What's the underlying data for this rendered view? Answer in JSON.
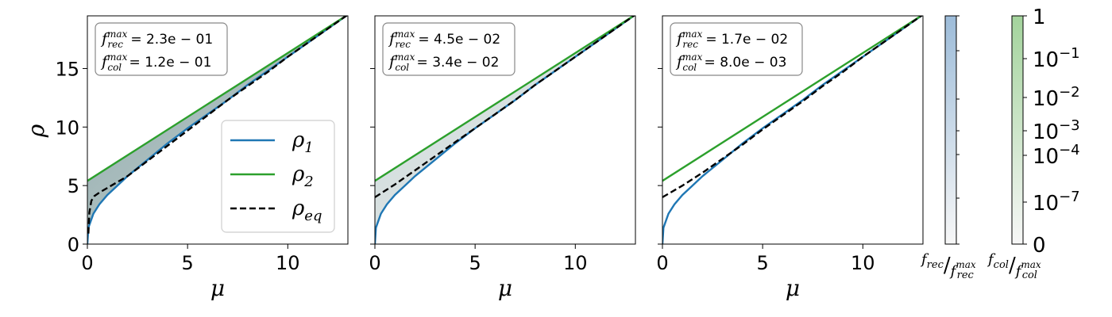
{
  "chart_data": {
    "type": "line",
    "colors": {
      "rho1": "#1f77b4",
      "rho2": "#2ca02c",
      "rho_eq": "#000000",
      "rec_fill": "#9dbcd9",
      "col_fill": "#a3d39c"
    },
    "xlabel": "μ",
    "ylabel": "ρ",
    "xlim": [
      0,
      13
    ],
    "ylim": [
      0,
      19.5
    ],
    "xticks": [
      "0",
      "5",
      "10"
    ],
    "yticks": [
      "0",
      "5",
      "10",
      "15"
    ],
    "legend": {
      "position": "lower-right",
      "entries": [
        {
          "key": "rho1",
          "base": "ρ",
          "sub": "1"
        },
        {
          "key": "rho2",
          "base": "ρ",
          "sub": "2"
        },
        {
          "key": "rho_eq",
          "base": "ρ",
          "sub": "eq"
        }
      ]
    },
    "panels": [
      {
        "annotation": [
          {
            "sup": "max",
            "sub": "rec",
            "value": "= 2.3e − 01"
          },
          {
            "sup": "max",
            "sub": "col",
            "value": "= 1.2e − 01"
          }
        ],
        "fill_intensity": 1.0,
        "series": {
          "rho1": {
            "x": [
              0,
              0.05,
              0.3,
              0.6,
              1,
              1.5,
              2,
              3,
              4,
              5,
              6,
              7,
              8,
              9,
              10,
              11,
              12,
              13
            ],
            "y": [
              0,
              1.4,
              2.6,
              3.4,
              4.2,
              5.0,
              5.8,
              7.2,
              8.6,
              9.9,
              11.1,
              12.3,
              13.6,
              14.8,
              16.0,
              17.2,
              18.4,
              19.6
            ]
          },
          "rho2": {
            "x": [
              0,
              13
            ],
            "y": [
              5.4,
              19.6
            ]
          },
          "rho_eq": {
            "x": [
              0.05,
              0.1,
              0.2,
              0.35,
              0.6,
              1,
              1.5,
              2,
              3,
              4,
              5,
              6,
              7,
              8,
              9,
              10,
              11,
              12,
              13
            ],
            "y": [
              0.9,
              2.7,
              3.7,
              4.1,
              4.4,
              4.8,
              5.3,
              5.8,
              7.1,
              8.4,
              9.7,
              11.0,
              12.3,
              13.5,
              14.7,
              16.0,
              17.2,
              18.4,
              19.6
            ]
          }
        }
      },
      {
        "annotation": [
          {
            "sup": "max",
            "sub": "rec",
            "value": "= 4.5e − 02"
          },
          {
            "sup": "max",
            "sub": "col",
            "value": "= 3.4e − 02"
          }
        ],
        "fill_intensity": 0.45,
        "series": {
          "rho1": {
            "x": [
              0,
              0.05,
              0.3,
              0.6,
              1,
              1.5,
              2,
              3,
              4,
              5,
              6,
              7,
              8,
              9,
              10,
              11,
              12,
              13
            ],
            "y": [
              0,
              1.4,
              2.6,
              3.4,
              4.2,
              5.0,
              5.8,
              7.2,
              8.6,
              9.9,
              11.1,
              12.3,
              13.6,
              14.8,
              16.0,
              17.2,
              18.4,
              19.6
            ]
          },
          "rho2": {
            "x": [
              0,
              13
            ],
            "y": [
              5.4,
              19.6
            ]
          },
          "rho_eq": {
            "x": [
              0,
              1,
              2,
              3,
              4,
              5,
              6,
              7,
              8,
              9,
              10,
              11,
              12,
              13
            ],
            "y": [
              4.0,
              5.1,
              6.3,
              7.5,
              8.7,
              9.9,
              11.1,
              12.3,
              13.6,
              14.8,
              16.0,
              17.2,
              18.4,
              19.6
            ]
          }
        }
      },
      {
        "annotation": [
          {
            "sup": "max",
            "sub": "rec",
            "value": "= 1.7e − 02"
          },
          {
            "sup": "max",
            "sub": "col",
            "value": "= 8.0e − 03"
          }
        ],
        "fill_intensity": 0.0,
        "series": {
          "rho1": {
            "x": [
              0,
              0.05,
              0.3,
              0.6,
              1,
              1.5,
              2,
              3,
              4,
              5,
              6,
              7,
              8,
              9,
              10,
              11,
              12,
              13
            ],
            "y": [
              0,
              1.4,
              2.6,
              3.4,
              4.2,
              5.0,
              5.8,
              7.2,
              8.6,
              9.9,
              11.1,
              12.3,
              13.6,
              14.8,
              16.0,
              17.2,
              18.4,
              19.6
            ]
          },
          "rho2": {
            "x": [
              0,
              13
            ],
            "y": [
              5.4,
              19.6
            ]
          },
          "rho_eq": {
            "x": [
              0,
              1,
              2,
              3,
              4,
              5,
              6,
              7,
              8,
              9,
              10,
              11,
              12,
              13
            ],
            "y": [
              4.0,
              5.0,
              6.1,
              7.3,
              8.5,
              9.8,
              11.0,
              12.2,
              13.5,
              14.7,
              16.0,
              17.2,
              18.4,
              19.6
            ]
          }
        }
      }
    ],
    "colorbars": [
      {
        "key": "rec",
        "label": {
          "num": "rec",
          "den": "rec",
          "sup": "max"
        },
        "ticks": []
      },
      {
        "key": "col",
        "label": {
          "num": "col",
          "den": "col",
          "sup": "max"
        },
        "scale": "log",
        "ticks": [
          {
            "value": 1,
            "base": "1",
            "exp": ""
          },
          {
            "value": 0.1,
            "base": "10",
            "exp": "−1"
          },
          {
            "value": 0.01,
            "base": "10",
            "exp": "−2"
          },
          {
            "value": 0.001,
            "base": "10",
            "exp": "−3"
          },
          {
            "value": 0.0001,
            "base": "10",
            "exp": "−4"
          },
          {
            "value": 1e-07,
            "base": "10",
            "exp": "−7"
          },
          {
            "value": 0,
            "base": "0",
            "exp": ""
          }
        ]
      }
    ]
  }
}
